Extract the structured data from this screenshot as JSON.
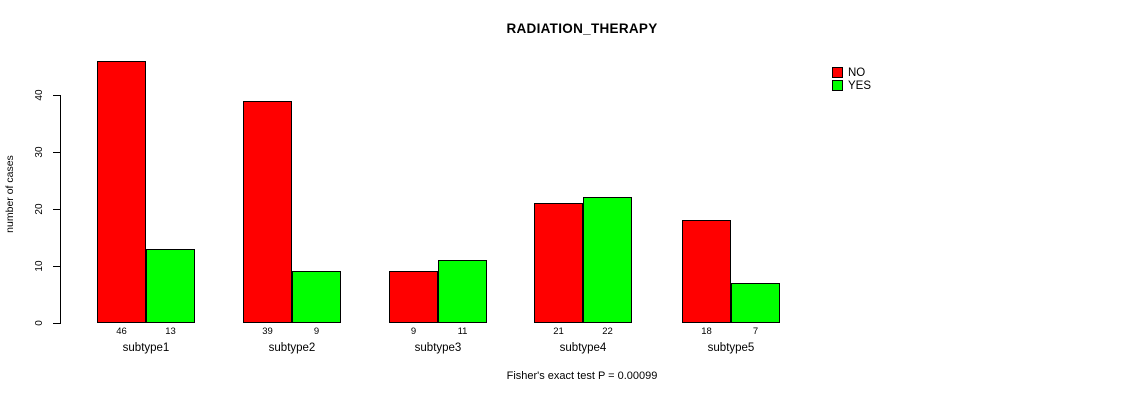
{
  "chart_data": {
    "type": "bar",
    "title": "RADIATION_THERAPY",
    "ylabel": "number of cases",
    "xlabel": "",
    "categories": [
      "subtype1",
      "subtype2",
      "subtype3",
      "subtype4",
      "subtype5"
    ],
    "series": [
      {
        "name": "NO",
        "color": "#ff0000",
        "values": [
          46,
          39,
          9,
          21,
          18
        ]
      },
      {
        "name": "YES",
        "color": "#00ff00",
        "values": [
          13,
          9,
          11,
          22,
          7
        ]
      }
    ],
    "show_value_labels": true,
    "yticks": [
      0,
      10,
      20,
      30,
      40
    ],
    "ylim": [
      0,
      46
    ],
    "grid": false,
    "legend_position": "top-right",
    "footnote": "Fisher's exact test P = 0.00099"
  },
  "colors": {
    "no": "#ff0000",
    "yes": "#00ff00",
    "axis": "#000000",
    "background": "#ffffff"
  }
}
